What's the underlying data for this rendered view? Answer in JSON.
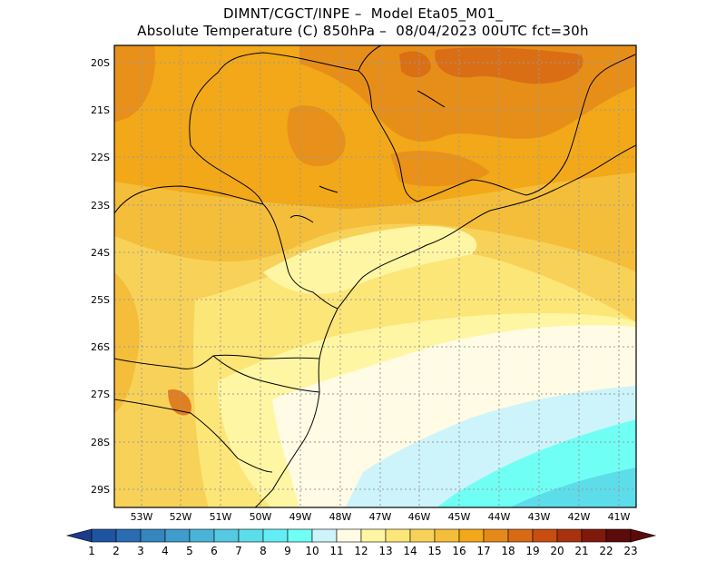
{
  "header": {
    "line1": "DIMNT/CGCT/INPE –  Model Eta05_M01_",
    "line2": "Absolute Temperature (C) 850hPa –  08/04/2023 00UTC fct=30h"
  },
  "axes": {
    "lat_labels": [
      "20S",
      "21S",
      "22S",
      "23S",
      "24S",
      "25S",
      "26S",
      "27S",
      "28S",
      "29S"
    ],
    "lon_labels": [
      "53W",
      "52W",
      "51W",
      "50W",
      "49W",
      "48W",
      "47W",
      "46W",
      "45W",
      "44W",
      "43W",
      "42W",
      "41W"
    ]
  },
  "colorbar": {
    "labels": [
      "1",
      "2",
      "3",
      "4",
      "5",
      "6",
      "7",
      "8",
      "9",
      "10",
      "11",
      "12",
      "13",
      "14",
      "15",
      "16",
      "17",
      "18",
      "19",
      "20",
      "21",
      "22",
      "23"
    ],
    "colors": [
      "#1a3c8c",
      "#1f55a0",
      "#2a6db0",
      "#3585be",
      "#3f9ccc",
      "#4ab4d8",
      "#55c8e2",
      "#5ddcea",
      "#62eef4",
      "#70fff4",
      "#ccf4fa",
      "#fffbe4",
      "#fff6a4",
      "#fde678",
      "#f8d258",
      "#f4be3a",
      "#f2a818",
      "#e58a1a",
      "#d86a14",
      "#c84e10",
      "#a8320e",
      "#7e1a0c",
      "#5c0a0a"
    ]
  }
}
